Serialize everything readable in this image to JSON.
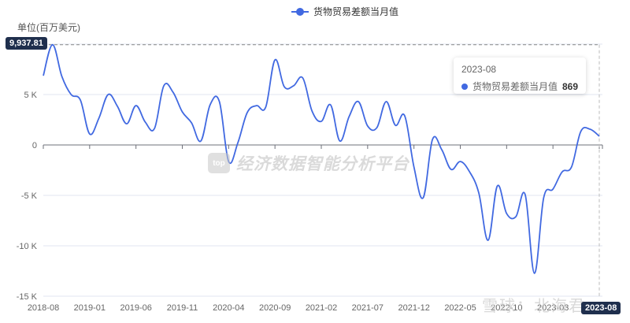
{
  "legend": {
    "label": "货物贸易差额当月值",
    "color": "#4169e1"
  },
  "unit_label": "单位(百万美元)",
  "y_max_badge": "9,937.81",
  "x_cursor_badge": "2023-08",
  "tooltip": {
    "title": "2023-08",
    "series_name": "货物贸易差额当月值",
    "value": "869"
  },
  "watermark": {
    "logo": "top",
    "text": "经济数据智能分析平台",
    "text2": "雪球：北海君"
  },
  "colors": {
    "line": "#4169e1",
    "grid": "#e0e6f1",
    "axis": "#6e7079",
    "badge": "#1f2f4d"
  },
  "chart_data": {
    "type": "line",
    "title": "",
    "xlabel": "",
    "ylabel": "单位(百万美元)",
    "ylim": [
      -15000,
      10000
    ],
    "yticks": [
      -15000,
      -10000,
      -5000,
      0,
      5000
    ],
    "ytick_labels": [
      "-15 K",
      "-10 K",
      "-5 K",
      "0",
      "5 K"
    ],
    "xtick_labels": [
      "2018-08",
      "2019-01",
      "2019-06",
      "2019-11",
      "2020-04",
      "2020-09",
      "2021-02",
      "2021-07",
      "2021-12",
      "2022-05",
      "2022-10",
      "2023-03",
      "2023-08"
    ],
    "grid": true,
    "legend_position": "top",
    "x": [
      "2018-08",
      "2018-09",
      "2018-10",
      "2018-11",
      "2018-12",
      "2019-01",
      "2019-02",
      "2019-03",
      "2019-04",
      "2019-05",
      "2019-06",
      "2019-07",
      "2019-08",
      "2019-09",
      "2019-10",
      "2019-11",
      "2019-12",
      "2020-01",
      "2020-02",
      "2020-03",
      "2020-04",
      "2020-05",
      "2020-06",
      "2020-07",
      "2020-08",
      "2020-09",
      "2020-10",
      "2020-11",
      "2020-12",
      "2021-01",
      "2021-02",
      "2021-03",
      "2021-04",
      "2021-05",
      "2021-06",
      "2021-07",
      "2021-08",
      "2021-09",
      "2021-10",
      "2021-11",
      "2021-12",
      "2022-01",
      "2022-02",
      "2022-03",
      "2022-04",
      "2022-05",
      "2022-06",
      "2022-07",
      "2022-08",
      "2022-09",
      "2022-10",
      "2022-11",
      "2022-12",
      "2023-01",
      "2023-02",
      "2023-03",
      "2023-04",
      "2023-05",
      "2023-06",
      "2023-07",
      "2023-08"
    ],
    "series": [
      {
        "name": "货物贸易差额当月值",
        "values": [
          6870,
          9938,
          6800,
          5000,
          4450,
          1090,
          2660,
          5000,
          3830,
          2100,
          3900,
          2270,
          1640,
          5860,
          5230,
          3280,
          2190,
          390,
          3980,
          4300,
          -1640,
          230,
          3200,
          3900,
          3750,
          8440,
          5780,
          5860,
          6640,
          3360,
          2340,
          3980,
          390,
          2810,
          4300,
          1880,
          1720,
          4300,
          1950,
          2890,
          -2190,
          -5230,
          550,
          -470,
          -2420,
          -1640,
          -2660,
          -4770,
          -9450,
          -4060,
          -6800,
          -7110,
          -4920,
          -12730,
          -5230,
          -4380,
          -2660,
          -2190,
          1330,
          1560,
          869
        ]
      }
    ],
    "max_marker": 9937.81,
    "highlight": {
      "x": "2023-08",
      "value": 869
    }
  }
}
